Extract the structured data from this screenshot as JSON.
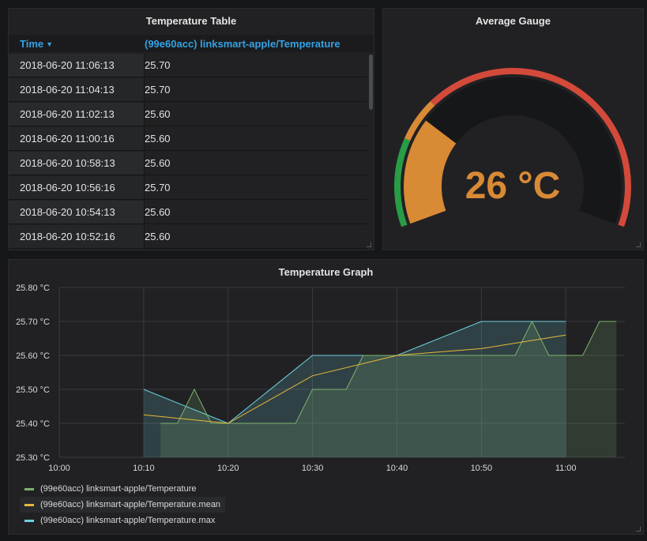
{
  "table": {
    "title": "Temperature Table",
    "columns": {
      "time": "Time",
      "series": "(99e60acc) linksmart-apple/Temperature"
    },
    "rows": [
      {
        "time": "2018-06-20 11:06:13",
        "value": "25.70"
      },
      {
        "time": "2018-06-20 11:04:13",
        "value": "25.70"
      },
      {
        "time": "2018-06-20 11:02:13",
        "value": "25.60"
      },
      {
        "time": "2018-06-20 11:00:16",
        "value": "25.60"
      },
      {
        "time": "2018-06-20 10:58:13",
        "value": "25.60"
      },
      {
        "time": "2018-06-20 10:56:16",
        "value": "25.70"
      },
      {
        "time": "2018-06-20 10:54:13",
        "value": "25.60"
      },
      {
        "time": "2018-06-20 10:52:16",
        "value": "25.60"
      }
    ]
  },
  "gauge": {
    "title": "Average Gauge",
    "value_text": "26 °C",
    "value": 26,
    "min": 0,
    "max": 100,
    "thresholds": [
      {
        "from": 0,
        "to": 20,
        "color": "#299c46"
      },
      {
        "from": 20,
        "to": 30,
        "color": "#d98a35"
      },
      {
        "from": 30,
        "to": 100,
        "color": "#d44a3a"
      }
    ],
    "value_color": "#d98a35"
  },
  "graph": {
    "title": "Temperature Graph",
    "legend": [
      {
        "name": "(99e60acc) linksmart-apple/Temperature",
        "color": "#7eb26d",
        "icon": "legend-line-icon"
      },
      {
        "name": "(99e60acc) linksmart-apple/Temperature.mean",
        "color": "#eab839",
        "icon": "legend-line-icon"
      },
      {
        "name": "(99e60acc) linksmart-apple/Temperature.max",
        "color": "#6ed0e0",
        "icon": "legend-line-icon"
      }
    ]
  },
  "chart_data": {
    "type": "line",
    "title": "Temperature Graph",
    "xlabel": "",
    "ylabel": "",
    "x_ticks": [
      "10:00",
      "10:10",
      "10:20",
      "10:30",
      "10:40",
      "10:50",
      "11:00"
    ],
    "y_ticks": [
      "25.30 °C",
      "25.40 °C",
      "25.50 °C",
      "25.60 °C",
      "25.70 °C",
      "25.80 °C"
    ],
    "xlim": [
      "10:00",
      "11:07"
    ],
    "ylim": [
      25.3,
      25.8
    ],
    "grid": true,
    "legend_position": "bottom-left",
    "series": [
      {
        "name": "(99e60acc) linksmart-apple/Temperature",
        "color": "#7eb26d",
        "fill": true,
        "x": [
          "10:12",
          "10:14",
          "10:16",
          "10:18",
          "10:20",
          "10:22",
          "10:24",
          "10:26",
          "10:28",
          "10:30",
          "10:32",
          "10:34",
          "10:36",
          "10:38",
          "10:40",
          "10:42",
          "10:44",
          "10:46",
          "10:48",
          "10:50",
          "10:52",
          "10:54",
          "10:56",
          "10:58",
          "11:00",
          "11:02",
          "11:04",
          "11:06"
        ],
        "values": [
          25.4,
          25.4,
          25.5,
          25.4,
          25.4,
          25.4,
          25.4,
          25.4,
          25.4,
          25.5,
          25.5,
          25.5,
          25.6,
          25.6,
          25.6,
          25.6,
          25.6,
          25.6,
          25.6,
          25.6,
          25.6,
          25.6,
          25.7,
          25.6,
          25.6,
          25.6,
          25.7,
          25.7
        ]
      },
      {
        "name": "(99e60acc) linksmart-apple/Temperature.mean",
        "color": "#eab839",
        "fill": false,
        "x": [
          "10:10",
          "10:20",
          "10:30",
          "10:40",
          "10:50",
          "11:00"
        ],
        "values": [
          25.425,
          25.4,
          25.54,
          25.6,
          25.62,
          25.66
        ]
      },
      {
        "name": "(99e60acc) linksmart-apple/Temperature.max",
        "color": "#6ed0e0",
        "fill": true,
        "x": [
          "10:10",
          "10:20",
          "10:30",
          "10:40",
          "10:50",
          "11:00"
        ],
        "values": [
          25.5,
          25.4,
          25.6,
          25.6,
          25.7,
          25.7
        ]
      }
    ]
  }
}
